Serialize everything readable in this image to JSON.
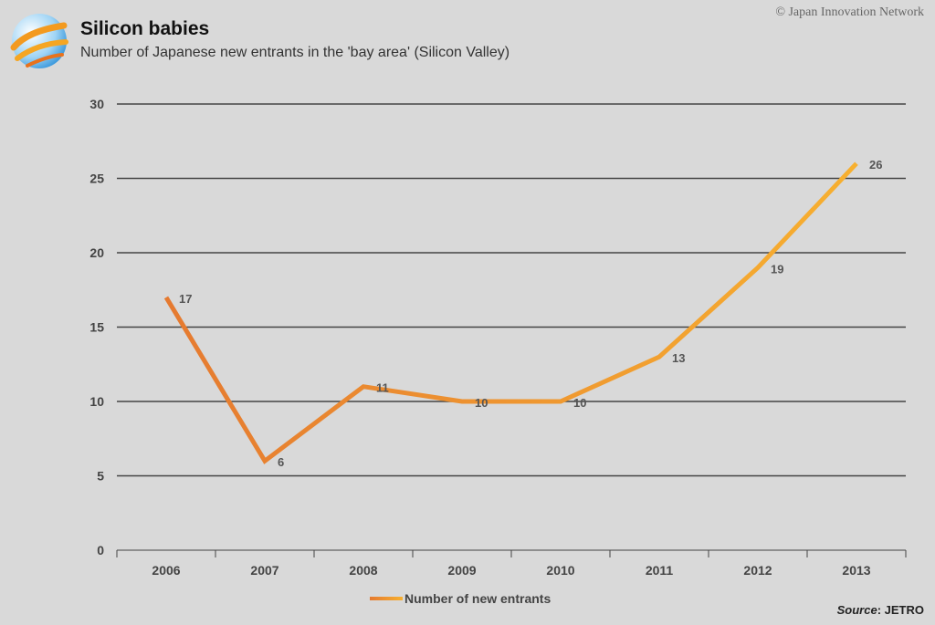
{
  "header": {
    "title": "Silicon babies",
    "subtitle": "Number of Japanese new entrants in the 'bay area' (Silicon Valley)",
    "copyright": "© Japan Innovation Network"
  },
  "source": {
    "label": "Source",
    "sep": ":",
    "value": " JETRO"
  },
  "legend": {
    "label": "Number of new entrants"
  },
  "colors": {
    "line_start": "#e57a30",
    "line_end": "#f7b030",
    "gridline": "#444444",
    "background": "#d9d9d9"
  },
  "chart_data": {
    "type": "line",
    "title": "Silicon babies",
    "subtitle": "Number of Japanese new entrants in the 'bay area' (Silicon Valley)",
    "categories": [
      "2006",
      "2007",
      "2008",
      "2009",
      "2010",
      "2011",
      "2012",
      "2013"
    ],
    "series": [
      {
        "name": "Number of new entrants",
        "values": [
          17,
          6,
          11,
          10,
          10,
          13,
          19,
          26
        ]
      }
    ],
    "ylim": [
      0,
      30
    ],
    "yticks": [
      0,
      5,
      10,
      15,
      20,
      25,
      30
    ],
    "xlabel": "",
    "ylabel": "",
    "grid": true,
    "legend_position": "bottom"
  }
}
